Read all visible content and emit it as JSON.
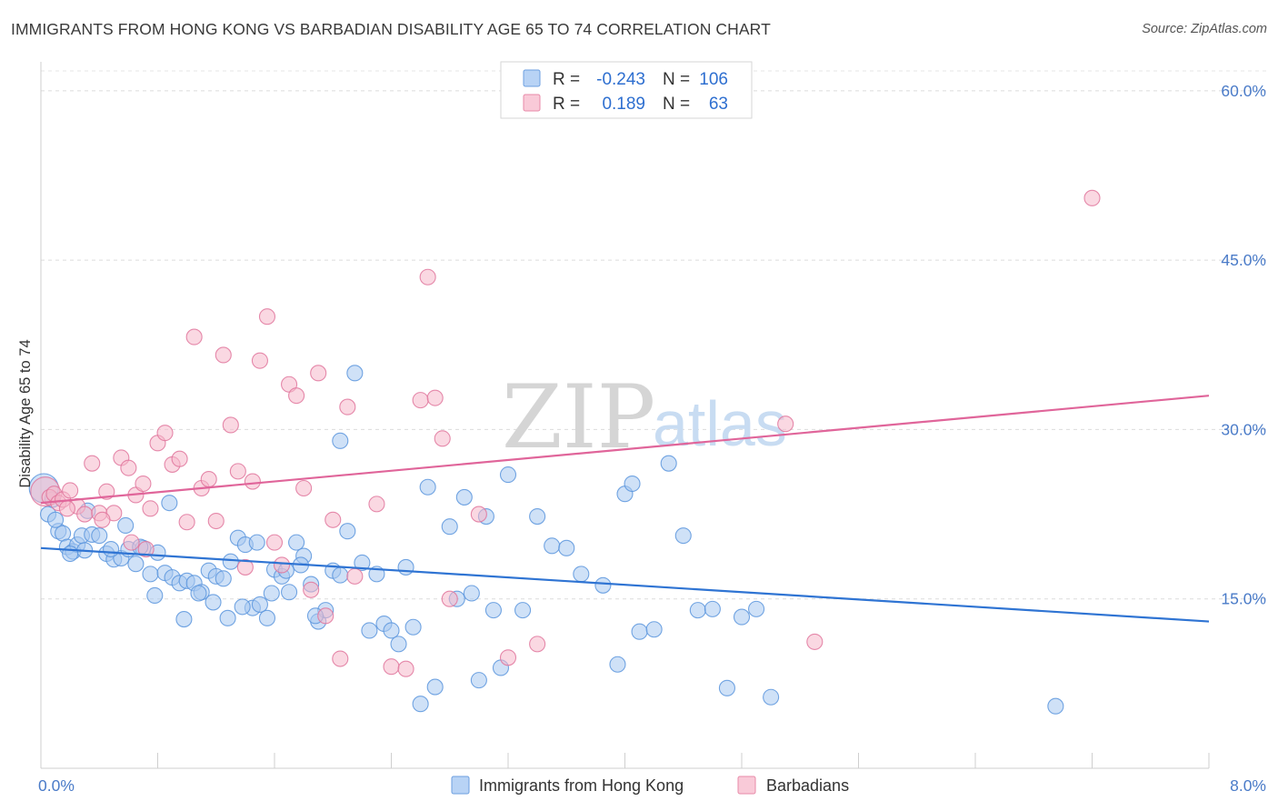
{
  "header": {
    "title": "IMMIGRANTS FROM HONG KONG VS BARBADIAN DISABILITY AGE 65 TO 74 CORRELATION CHART",
    "source": "Source: ZipAtlas.com"
  },
  "watermark": {
    "zip": "ZIP",
    "atlas": "atlas"
  },
  "legend": {
    "rows": [
      {
        "r_label": "R =",
        "r_value": "-0.243",
        "n_label": "N =",
        "n_value": "106",
        "color": "#a8c8f0"
      },
      {
        "r_label": "R =",
        "r_value": "0.189",
        "n_label": "N =",
        "n_value": "63",
        "color": "#f5b8ca"
      }
    ]
  },
  "bottom_legend": {
    "items": [
      {
        "label": "Immigrants from Hong Kong",
        "color": "#a8c8f0"
      },
      {
        "label": "Barbadians",
        "color": "#f5b8ca"
      }
    ]
  },
  "chart_data": {
    "type": "scatter",
    "title": "IMMIGRANTS FROM HONG KONG VS BARBADIAN DISABILITY AGE 65 TO 74 CORRELATION CHART",
    "xlabel": "",
    "ylabel": "Disability Age 65 to 74",
    "xlim": [
      0,
      8
    ],
    "ylim": [
      0,
      62
    ],
    "x_tick_labels": [
      "0.0%",
      "8.0%"
    ],
    "y_ticks": [
      15,
      30,
      45,
      60
    ],
    "y_tick_labels": [
      "15.0%",
      "30.0%",
      "45.0%",
      "60.0%"
    ],
    "grid": "horizontal dashed",
    "legend_position": "top-center",
    "series": [
      {
        "name": "Immigrants from Hong Kong",
        "color": "#5b95dd",
        "fill": "#a8c8f0",
        "trend": {
          "x": [
            0,
            8
          ],
          "y": [
            19.5,
            13.0
          ]
        },
        "points": [
          [
            0.02,
            24.8
          ],
          [
            0.05,
            22.5
          ],
          [
            0.08,
            23.8
          ],
          [
            0.12,
            21.0
          ],
          [
            0.15,
            20.8
          ],
          [
            0.18,
            19.6
          ],
          [
            0.22,
            19.2
          ],
          [
            0.25,
            19.8
          ],
          [
            0.28,
            20.6
          ],
          [
            0.3,
            19.3
          ],
          [
            0.35,
            20.7
          ],
          [
            0.4,
            20.6
          ],
          [
            0.45,
            19.0
          ],
          [
            0.5,
            18.5
          ],
          [
            0.55,
            18.6
          ],
          [
            0.6,
            19.4
          ],
          [
            0.65,
            18.1
          ],
          [
            0.7,
            19.5
          ],
          [
            0.75,
            17.2
          ],
          [
            0.8,
            19.1
          ],
          [
            0.85,
            17.3
          ],
          [
            0.9,
            16.9
          ],
          [
            0.95,
            16.4
          ],
          [
            1.0,
            16.6
          ],
          [
            1.05,
            16.4
          ],
          [
            1.1,
            15.6
          ],
          [
            1.15,
            17.5
          ],
          [
            1.2,
            17.0
          ],
          [
            1.25,
            16.8
          ],
          [
            1.3,
            18.3
          ],
          [
            1.35,
            20.4
          ],
          [
            1.4,
            19.8
          ],
          [
            1.45,
            14.2
          ],
          [
            1.5,
            14.5
          ],
          [
            1.55,
            13.3
          ],
          [
            1.6,
            17.6
          ],
          [
            1.65,
            17.0
          ],
          [
            1.7,
            15.6
          ],
          [
            1.75,
            20.0
          ],
          [
            1.8,
            18.8
          ],
          [
            1.85,
            16.3
          ],
          [
            1.9,
            13.0
          ],
          [
            1.95,
            14.0
          ],
          [
            2.0,
            17.5
          ],
          [
            2.05,
            17.1
          ],
          [
            2.1,
            21.0
          ],
          [
            2.2,
            18.2
          ],
          [
            2.25,
            12.2
          ],
          [
            2.3,
            17.2
          ],
          [
            2.35,
            12.8
          ],
          [
            2.4,
            12.2
          ],
          [
            2.45,
            11.0
          ],
          [
            2.5,
            17.8
          ],
          [
            2.55,
            12.5
          ],
          [
            2.6,
            5.7
          ],
          [
            2.65,
            24.9
          ],
          [
            2.7,
            7.2
          ],
          [
            2.8,
            21.4
          ],
          [
            2.85,
            15.0
          ],
          [
            2.9,
            24.0
          ],
          [
            2.95,
            15.5
          ],
          [
            3.0,
            7.8
          ],
          [
            3.05,
            22.3
          ],
          [
            3.1,
            14.0
          ],
          [
            3.15,
            8.9
          ],
          [
            3.2,
            26.0
          ],
          [
            3.3,
            14.0
          ],
          [
            3.4,
            22.3
          ],
          [
            3.5,
            19.7
          ],
          [
            3.6,
            19.5
          ],
          [
            3.7,
            17.2
          ],
          [
            3.85,
            16.2
          ],
          [
            3.95,
            9.2
          ],
          [
            4.0,
            24.3
          ],
          [
            4.05,
            25.2
          ],
          [
            4.1,
            12.1
          ],
          [
            4.2,
            12.3
          ],
          [
            4.3,
            27.0
          ],
          [
            4.4,
            20.6
          ],
          [
            4.5,
            14.0
          ],
          [
            4.6,
            14.1
          ],
          [
            4.7,
            7.1
          ],
          [
            4.8,
            13.4
          ],
          [
            4.9,
            14.1
          ],
          [
            5.0,
            6.3
          ],
          [
            6.95,
            5.5
          ],
          [
            0.1,
            22.0
          ],
          [
            0.2,
            19.0
          ],
          [
            0.32,
            22.8
          ],
          [
            0.48,
            19.4
          ],
          [
            0.58,
            21.5
          ],
          [
            0.68,
            19.6
          ],
          [
            0.78,
            15.3
          ],
          [
            0.88,
            23.5
          ],
          [
            0.98,
            13.2
          ],
          [
            1.08,
            15.5
          ],
          [
            1.18,
            14.7
          ],
          [
            1.28,
            13.3
          ],
          [
            1.38,
            14.3
          ],
          [
            1.48,
            20.0
          ],
          [
            1.58,
            15.5
          ],
          [
            1.68,
            17.5
          ],
          [
            1.78,
            18.0
          ],
          [
            1.88,
            13.5
          ],
          [
            2.05,
            29.0
          ],
          [
            2.15,
            35.0
          ]
        ]
      },
      {
        "name": "Barbadians",
        "color": "#e0769c",
        "fill": "#f5b8ca",
        "trend": {
          "x": [
            0,
            8
          ],
          "y": [
            23.5,
            33.0
          ]
        },
        "points": [
          [
            0.03,
            24.5
          ],
          [
            0.06,
            24.0
          ],
          [
            0.09,
            24.3
          ],
          [
            0.12,
            23.5
          ],
          [
            0.15,
            23.8
          ],
          [
            0.2,
            24.6
          ],
          [
            0.25,
            23.2
          ],
          [
            0.3,
            22.5
          ],
          [
            0.35,
            27.0
          ],
          [
            0.4,
            22.6
          ],
          [
            0.45,
            24.5
          ],
          [
            0.5,
            22.6
          ],
          [
            0.55,
            27.5
          ],
          [
            0.6,
            26.6
          ],
          [
            0.65,
            24.2
          ],
          [
            0.7,
            25.2
          ],
          [
            0.75,
            23.0
          ],
          [
            0.8,
            28.8
          ],
          [
            0.85,
            29.7
          ],
          [
            0.9,
            26.9
          ],
          [
            0.95,
            27.4
          ],
          [
            1.0,
            21.8
          ],
          [
            1.05,
            38.2
          ],
          [
            1.1,
            24.8
          ],
          [
            1.15,
            25.6
          ],
          [
            1.2,
            21.9
          ],
          [
            1.25,
            36.6
          ],
          [
            1.3,
            30.4
          ],
          [
            1.35,
            26.3
          ],
          [
            1.4,
            17.8
          ],
          [
            1.45,
            25.4
          ],
          [
            1.5,
            36.1
          ],
          [
            1.55,
            40.0
          ],
          [
            1.6,
            20.0
          ],
          [
            1.65,
            18.0
          ],
          [
            1.7,
            34.0
          ],
          [
            1.75,
            33.0
          ],
          [
            1.8,
            24.8
          ],
          [
            1.85,
            15.8
          ],
          [
            1.9,
            35.0
          ],
          [
            1.95,
            13.5
          ],
          [
            2.0,
            22.0
          ],
          [
            2.05,
            9.7
          ],
          [
            2.1,
            32.0
          ],
          [
            2.15,
            17.0
          ],
          [
            2.3,
            23.4
          ],
          [
            2.4,
            9.0
          ],
          [
            2.5,
            8.8
          ],
          [
            2.6,
            32.6
          ],
          [
            2.65,
            43.5
          ],
          [
            2.7,
            32.8
          ],
          [
            2.75,
            29.2
          ],
          [
            2.8,
            15.0
          ],
          [
            3.0,
            22.5
          ],
          [
            3.2,
            9.8
          ],
          [
            3.4,
            11.0
          ],
          [
            5.1,
            30.5
          ],
          [
            5.3,
            11.2
          ],
          [
            7.2,
            50.5
          ],
          [
            0.18,
            23.0
          ],
          [
            0.42,
            22.0
          ],
          [
            0.62,
            20.0
          ],
          [
            0.72,
            19.4
          ]
        ]
      }
    ]
  }
}
